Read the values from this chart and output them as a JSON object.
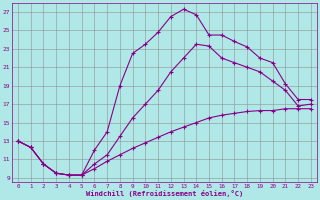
{
  "xlabel": "Windchill (Refroidissement éolien,°C)",
  "bg_color": "#b0e8e8",
  "grid_color": "#909090",
  "line_color": "#880088",
  "xlim": [
    -0.5,
    23.5
  ],
  "ylim": [
    8.5,
    28
  ],
  "xticks": [
    0,
    1,
    2,
    3,
    4,
    5,
    6,
    7,
    8,
    9,
    10,
    11,
    12,
    13,
    14,
    15,
    16,
    17,
    18,
    19,
    20,
    21,
    22,
    23
  ],
  "yticks": [
    9,
    11,
    13,
    15,
    17,
    19,
    21,
    23,
    25,
    27
  ],
  "line1_x": [
    0,
    1,
    2,
    3,
    4,
    5,
    6,
    7,
    8,
    9,
    10,
    11,
    12,
    13,
    14,
    15,
    16,
    17,
    18,
    19,
    20,
    21,
    22,
    23
  ],
  "line1_y": [
    13,
    12.3,
    10.5,
    9.5,
    9.3,
    9.3,
    12.0,
    14.0,
    19.0,
    22.5,
    23.5,
    24.8,
    26.5,
    27.3,
    26.7,
    24.5,
    24.5,
    23.8,
    23.2,
    22.0,
    21.5,
    19.2,
    17.5,
    17.5
  ],
  "line2_x": [
    0,
    1,
    2,
    3,
    4,
    5,
    6,
    7,
    8,
    9,
    10,
    11,
    12,
    13,
    14,
    15,
    16,
    17,
    18,
    19,
    20,
    21,
    22,
    23
  ],
  "line2_y": [
    13,
    12.3,
    10.5,
    9.5,
    9.3,
    9.3,
    10.5,
    11.5,
    13.5,
    15.5,
    17.0,
    18.5,
    20.5,
    22.0,
    23.5,
    23.3,
    22.0,
    21.5,
    21.0,
    20.5,
    19.5,
    18.5,
    16.8,
    17.0
  ],
  "line3_x": [
    0,
    1,
    2,
    3,
    4,
    5,
    6,
    7,
    8,
    9,
    10,
    11,
    12,
    13,
    14,
    15,
    16,
    17,
    18,
    19,
    20,
    21,
    22,
    23
  ],
  "line3_y": [
    13,
    12.3,
    10.5,
    9.5,
    9.3,
    9.3,
    10.0,
    10.8,
    11.5,
    12.2,
    12.8,
    13.4,
    14.0,
    14.5,
    15.0,
    15.5,
    15.8,
    16.0,
    16.2,
    16.3,
    16.3,
    16.5,
    16.5,
    16.5
  ]
}
